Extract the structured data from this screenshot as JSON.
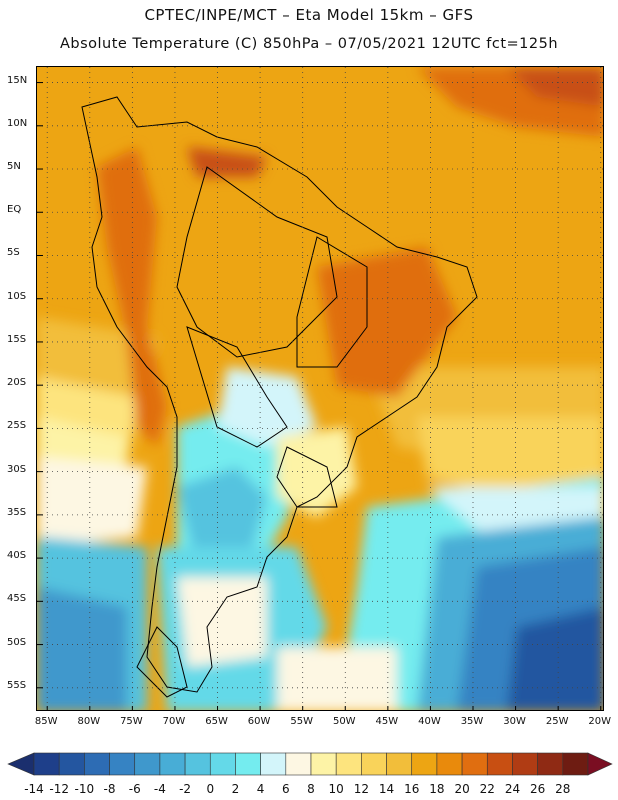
{
  "header": {
    "line1": "CPTEC/INPE/MCT –  Eta Model 15km – GFS",
    "line2": "Absolute Temperature (C) 850hPa – 07/05/2021 12UTC fct=125h"
  },
  "map": {
    "lat_labels": [
      "15N",
      "10N",
      "5N",
      "EQ",
      "5S",
      "10S",
      "15S",
      "20S",
      "25S",
      "30S",
      "35S",
      "40S",
      "45S",
      "50S",
      "55S"
    ],
    "lon_labels": [
      "85W",
      "80W",
      "75W",
      "70W",
      "65W",
      "60W",
      "55W",
      "50W",
      "45W",
      "40W",
      "35W",
      "30W",
      "25W",
      "20W"
    ]
  },
  "colorbar": {
    "labels": [
      "-14",
      "-12",
      "-10",
      "-8",
      "-6",
      "-4",
      "-2",
      "0",
      "2",
      "4",
      "6",
      "8",
      "10",
      "12",
      "14",
      "16",
      "18",
      "20",
      "22",
      "24",
      "26",
      "28"
    ],
    "colors": [
      "#1e3f8a",
      "#2456a0",
      "#2d6cb4",
      "#3683c3",
      "#3f98cc",
      "#48add6",
      "#55c3df",
      "#64d9e8",
      "#74ecef",
      "#d3f5fa",
      "#fdf7e3",
      "#fdf3a6",
      "#fde47e",
      "#f9d35a",
      "#f2be3a",
      "#eda513",
      "#e98a0c",
      "#e06e10",
      "#c84f12",
      "#b03c14",
      "#8f2a14",
      "#6e1c12"
    ]
  },
  "colors": {
    "warm_main": "#eda513",
    "ocean_cold": "#3683c3",
    "coast": "#000000"
  }
}
